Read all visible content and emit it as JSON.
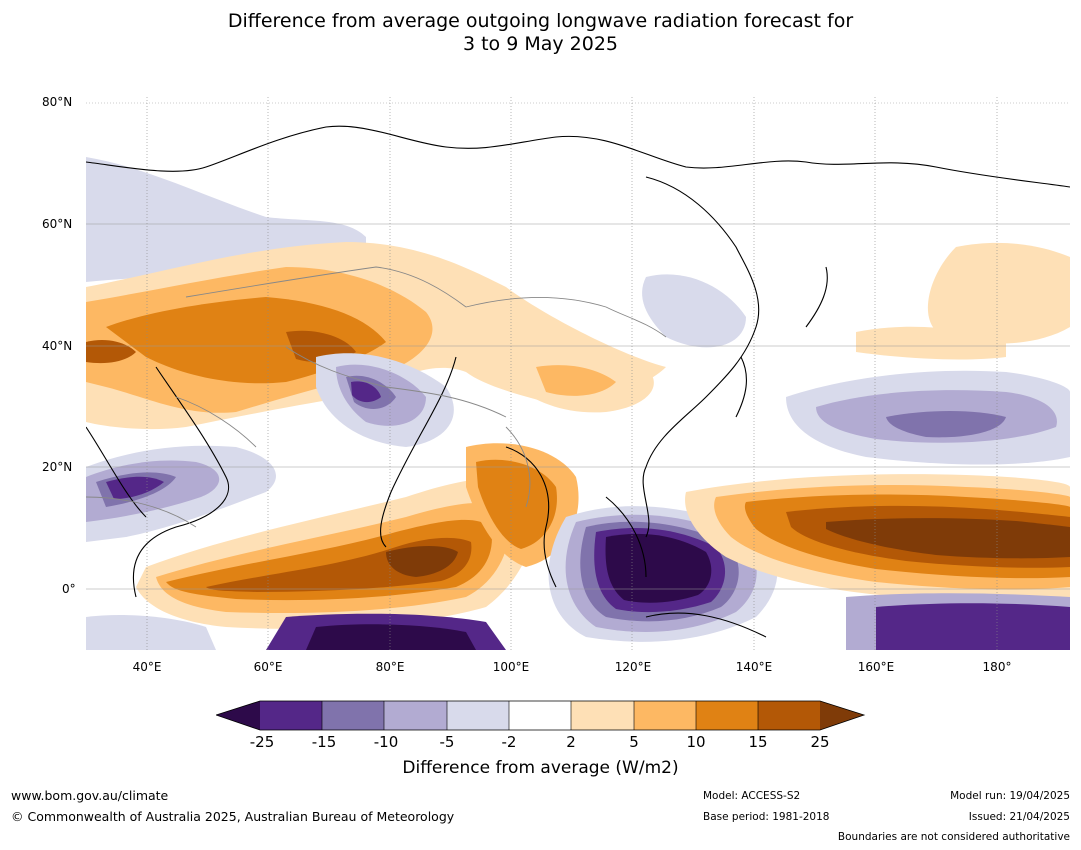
{
  "title_line1": "Difference from average outgoing longwave radiation forecast for",
  "title_line2": "3 to 9 May 2025",
  "lat_labels": [
    "80°N",
    "60°N",
    "40°N",
    "20°N",
    "0°"
  ],
  "lon_labels": [
    "40°E",
    "60°E",
    "80°E",
    "100°E",
    "120°E",
    "140°E",
    "160°E",
    "180°"
  ],
  "colorbar": {
    "ticks": [
      "-25",
      "-15",
      "-10",
      "-5",
      "-2",
      "2",
      "5",
      "10",
      "15",
      "25"
    ],
    "title": "Difference from average (W/m2)",
    "colors": {
      "under": "#2d0a4a",
      "c1": "#542788",
      "c2": "#8073ac",
      "c3": "#b2abd2",
      "c4": "#d8daeb",
      "c5": "#ffffff",
      "c6": "#fee0b6",
      "c7": "#fdb863",
      "c8": "#e08214",
      "c9": "#b35806",
      "over": "#7f3b08"
    }
  },
  "footer": {
    "website": "www.bom.gov.au/climate",
    "copyright": "© Commonwealth of Australia 2025, Australian Bureau of Meteorology",
    "model": "Model: ACCESS-S2",
    "base_period": "Base period: 1981-2018",
    "model_run": "Model run: 19/04/2025",
    "issued": "Issued: 21/04/2025",
    "disclaimer": "Boundaries are not considered authoritative"
  }
}
